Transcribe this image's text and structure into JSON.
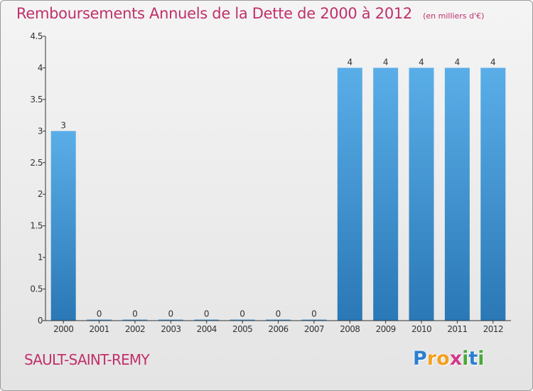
{
  "chart_data": {
    "type": "bar",
    "title": "Remboursements Annuels de la Dette de 2000 à 2012",
    "subtitle": "(en milliers d'€)",
    "categories": [
      "2000",
      "2001",
      "2002",
      "2003",
      "2004",
      "2005",
      "2006",
      "2007",
      "2008",
      "2009",
      "2010",
      "2011",
      "2012"
    ],
    "values": [
      3,
      0,
      0,
      0,
      0,
      0,
      0,
      0,
      4,
      4,
      4,
      4,
      4
    ],
    "data_labels": [
      "3",
      "0",
      "0",
      "0",
      "0",
      "0",
      "0",
      "0",
      "4",
      "4",
      "4",
      "4",
      "4"
    ],
    "ylim": [
      0,
      4.5
    ],
    "yticks": [
      0,
      0.5,
      1,
      1.5,
      2,
      2.5,
      3,
      3.5,
      4,
      4.5
    ],
    "ytick_labels": [
      "0",
      "0.5",
      "1",
      "1.5",
      "2",
      "2.5",
      "3",
      "3.5",
      "4",
      "4.5"
    ],
    "xlabel": "",
    "ylabel": "",
    "grid": false,
    "legend": "none",
    "bar_color_top": "#5aaee8",
    "bar_color_bottom": "#2a78b6"
  },
  "place_name": "SAULT-SAINT-REMY",
  "logo": {
    "letters": [
      "P",
      "r",
      "o",
      "x",
      "i",
      "t",
      "i"
    ],
    "colors": [
      "#2b7fd0",
      "#f2a020",
      "#f2a020",
      "#d23a8a",
      "#4aa83a",
      "#2b7fd0",
      "#4aa83a"
    ]
  },
  "colors": {
    "title": "#c0306a",
    "axis": "#333333",
    "background_top": "#f4f4f4",
    "background_bottom": "#e4e4e4"
  }
}
